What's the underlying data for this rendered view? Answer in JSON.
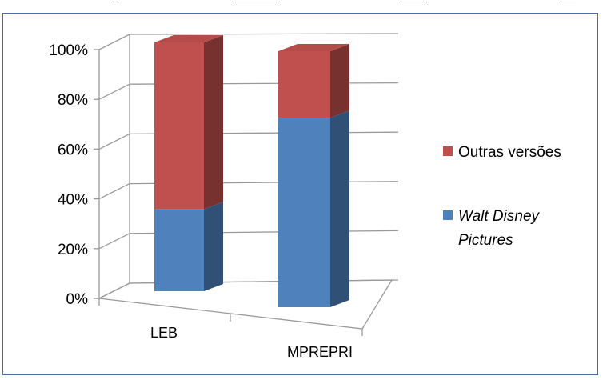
{
  "chart_data": {
    "type": "bar",
    "stacked": true,
    "style": "3d-column-100-percent",
    "categories": [
      "LEB",
      "MPREPRI"
    ],
    "series": [
      {
        "name": "Walt Disney Pictures",
        "italic": true,
        "color": "#4f81bd",
        "values": [
          33,
          74
        ]
      },
      {
        "name": "Outras versões",
        "italic": false,
        "color": "#c0504d",
        "values": [
          67,
          26
        ]
      }
    ],
    "ylim": [
      0,
      100
    ],
    "y_ticks": [
      "0%",
      "20%",
      "40%",
      "60%",
      "80%",
      "100%"
    ],
    "grid": true,
    "legend_position": "right",
    "legend": [
      {
        "label": "Outras versões",
        "italic": false,
        "color": "#c0504d"
      },
      {
        "label_lines": [
          "Walt Disney",
          "Pictures"
        ],
        "italic": true,
        "color": "#4f81bd"
      }
    ],
    "title": "",
    "xlabel": "",
    "ylabel": ""
  }
}
